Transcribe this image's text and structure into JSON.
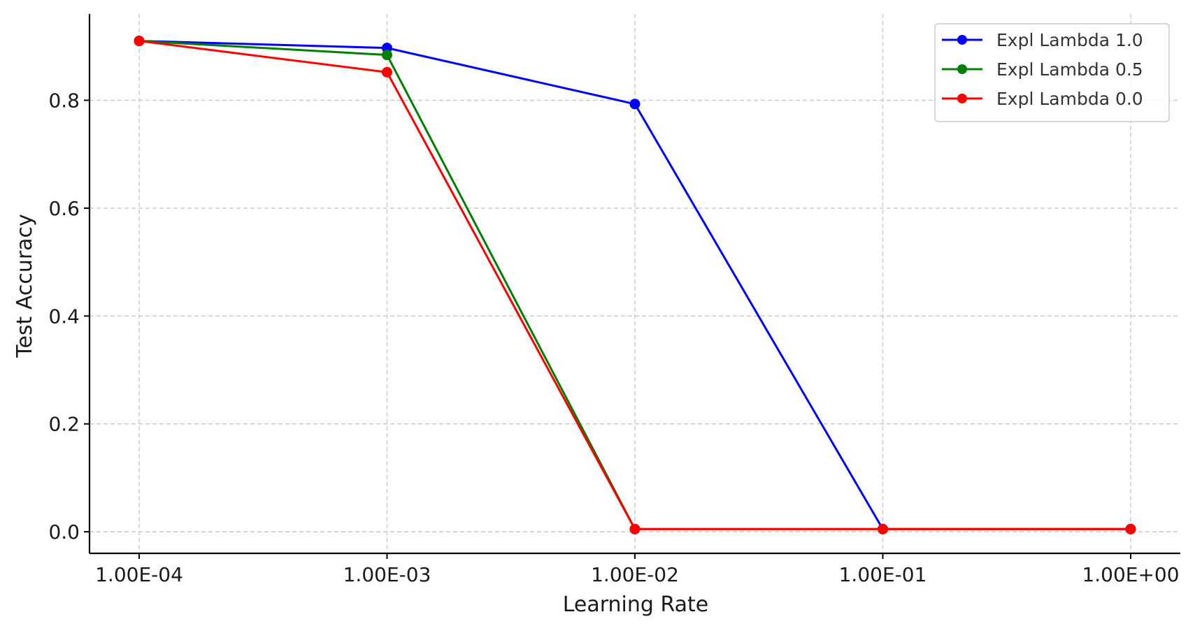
{
  "chart_data": {
    "type": "line",
    "title": "",
    "xlabel": "Learning Rate",
    "ylabel": "Test Accuracy",
    "x_scale": "log",
    "x": [
      0.0001,
      0.001,
      0.01,
      0.1,
      1.0
    ],
    "x_tick_labels": [
      "1.00E-04",
      "1.00E-03",
      "1.00E-02",
      "1.00E-01",
      "1.00E+00"
    ],
    "y_ticks": [
      0.0,
      0.2,
      0.4,
      0.6,
      0.8
    ],
    "y_tick_labels": [
      "0.0",
      "0.2",
      "0.4",
      "0.6",
      "0.8"
    ],
    "ylim": [
      -0.04,
      0.96
    ],
    "grid": true,
    "legend_position": "top-right",
    "series": [
      {
        "name": "Expl Lambda 1.0",
        "color": "#0000ff",
        "values": [
          0.91,
          0.897,
          0.793,
          0.005,
          0.005
        ]
      },
      {
        "name": "Expl Lambda 0.5",
        "color": "#008000",
        "values": [
          0.91,
          0.884,
          0.005,
          0.005,
          0.005
        ]
      },
      {
        "name": "Expl Lambda 0.0",
        "color": "#ff0000",
        "values": [
          0.91,
          0.852,
          0.005,
          0.005,
          0.005
        ]
      }
    ]
  }
}
